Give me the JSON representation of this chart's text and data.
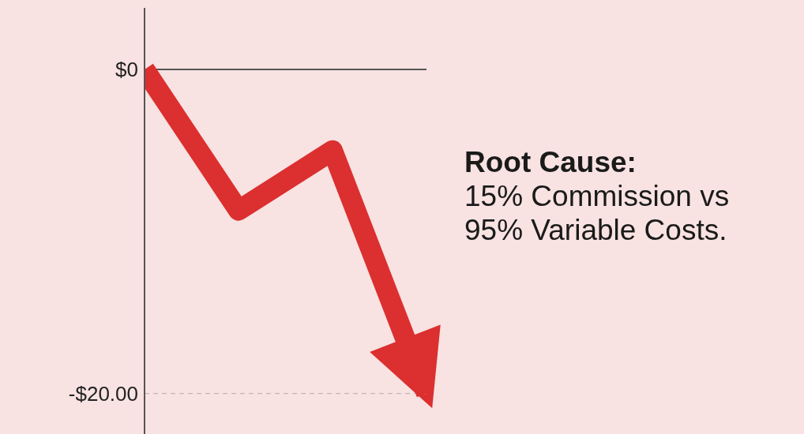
{
  "chart_data": {
    "type": "line",
    "categories": [
      null,
      null,
      null,
      null
    ],
    "series": [
      {
        "color": "#dc2f2f",
        "values": [
          0,
          -8.7,
          -5,
          -20
        ]
      }
    ],
    "ylim": [
      -22.5,
      3.8
    ],
    "yticks": [
      {
        "value": 0,
        "label": "$0"
      },
      {
        "value": -20,
        "label": "-$20.00"
      }
    ],
    "tick_labels": "y",
    "grid": false,
    "legend": false,
    "marker": "none",
    "line_style": "solid",
    "ref_lines": [
      {
        "axis": "y",
        "value": 0,
        "color": "#555555",
        "line_style": "solid"
      },
      {
        "axis": "y",
        "value": -20,
        "color": "#c9b3b3",
        "line_style": "dashed"
      }
    ],
    "annotations": [
      "Root Cause:",
      "15% Commission vs 95% Variable Costs."
    ]
  }
}
